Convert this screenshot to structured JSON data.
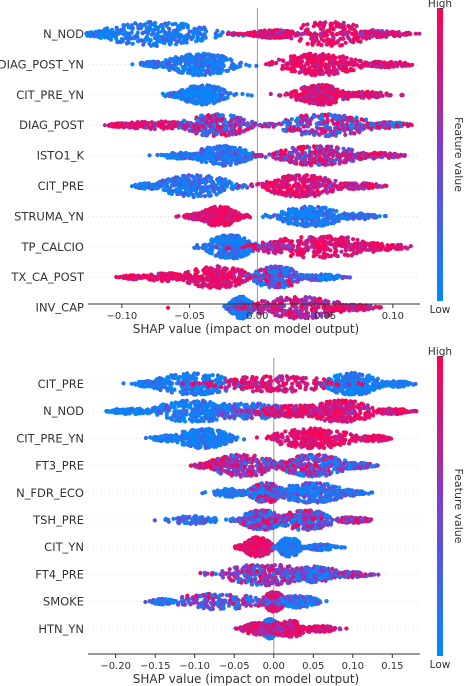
{
  "chart_data": [
    {
      "type": "scatter",
      "kind": "shap-beeswarm",
      "title": "",
      "xlabel": "SHAP value (impact on model output)",
      "xlim": [
        -0.125,
        0.12
      ],
      "xticks": [
        -0.1,
        -0.05,
        0.0,
        0.05,
        0.1
      ],
      "xtick_labels": [
        "−0.10",
        "−0.05",
        "0.00",
        "0.05",
        "0.10"
      ],
      "colorbar": {
        "label": "Feature value",
        "high": "High",
        "low": "Low"
      },
      "features": [
        {
          "name": "N_NOD",
          "clusters": [
            [
              -0.074,
              0.024,
              12,
              0.1,
              0.12,
              3
            ],
            [
              0.053,
              0.018,
              12,
              0.9,
              0.12,
              2
            ],
            [
              -0.115,
              0.008,
              3,
              0.1,
              0.12,
              1
            ],
            [
              0.012,
              0.01,
              4,
              0.85,
              0.14,
              3
            ],
            [
              0.09,
              0.012,
              3,
              0.8,
              0.15,
              1
            ]
          ]
        },
        {
          "name": "DIAG_POST_YN",
          "clusters": [
            [
              -0.042,
              0.015,
              11,
              0.12,
              0.12,
              3
            ],
            [
              0.045,
              0.018,
              11,
              0.9,
              0.1,
              3
            ],
            [
              -0.075,
              0.008,
              3,
              0.15,
              0.15,
              1
            ],
            [
              0.095,
              0.01,
              3,
              0.85,
              0.12,
              1
            ]
          ]
        },
        {
          "name": "CIT_PRE_YN",
          "clusters": [
            [
              -0.04,
              0.01,
              10,
              0.1,
              0.12,
              3
            ],
            [
              0.047,
              0.012,
              10,
              0.88,
              0.12,
              3
            ],
            [
              -0.055,
              0.006,
              3,
              0.1,
              0.12,
              1
            ],
            [
              0.08,
              0.01,
              3,
              0.85,
              0.15,
              1
            ]
          ]
        },
        {
          "name": "DIAG_POST",
          "clusters": [
            [
              -0.03,
              0.015,
              11,
              0.55,
              0.4,
              3
            ],
            [
              0.05,
              0.02,
              11,
              0.5,
              0.4,
              3
            ],
            [
              -0.075,
              0.015,
              4,
              0.8,
              0.2,
              1
            ],
            [
              -0.1,
              0.005,
              2,
              0.9,
              0.1,
              1
            ],
            [
              0.095,
              0.01,
              3,
              0.45,
              0.4,
              1
            ]
          ]
        },
        {
          "name": "ISTO1_K",
          "clusters": [
            [
              -0.026,
              0.012,
              10,
              0.15,
              0.15,
              3
            ],
            [
              0.045,
              0.018,
              10,
              0.7,
              0.3,
              3
            ],
            [
              -0.055,
              0.01,
              3,
              0.1,
              0.1,
              1
            ],
            [
              0.085,
              0.012,
              3,
              0.75,
              0.25,
              1
            ]
          ]
        },
        {
          "name": "CIT_PRE",
          "clusters": [
            [
              -0.046,
              0.016,
              11,
              0.15,
              0.15,
              3
            ],
            [
              0.032,
              0.016,
              11,
              0.85,
              0.15,
              3
            ],
            [
              -0.08,
              0.006,
              3,
              0.1,
              0.12,
              1
            ],
            [
              0.07,
              0.012,
              3,
              0.8,
              0.2,
              1
            ]
          ]
        },
        {
          "name": "STRUMA_YN",
          "clusters": [
            [
              -0.028,
              0.008,
              10,
              0.9,
              0.1,
              3
            ],
            [
              0.04,
              0.014,
              10,
              0.12,
              0.12,
              3
            ],
            [
              -0.045,
              0.005,
              3,
              0.85,
              0.1,
              1
            ],
            [
              0.075,
              0.008,
              3,
              0.15,
              0.12,
              1
            ]
          ]
        },
        {
          "name": "TP_CALCIO",
          "clusters": [
            [
              -0.02,
              0.01,
              12,
              0.12,
              0.12,
              3
            ],
            [
              0.045,
              0.025,
              11,
              0.88,
              0.12,
              3
            ],
            [
              0.085,
              0.015,
              4,
              0.9,
              0.1,
              1
            ],
            [
              0.012,
              0.006,
              3,
              0.7,
              0.2,
              1
            ]
          ]
        },
        {
          "name": "TX_CA_POST",
          "clusters": [
            [
              -0.03,
              0.014,
              11,
              0.88,
              0.1,
              3
            ],
            [
              0.014,
              0.01,
              11,
              0.4,
              0.4,
              3
            ],
            [
              -0.065,
              0.012,
              4,
              0.88,
              0.1,
              1
            ],
            [
              0.045,
              0.01,
              3,
              0.2,
              0.2,
              1
            ],
            [
              -0.092,
              0.004,
              2,
              0.9,
              0.1,
              1
            ]
          ]
        },
        {
          "name": "INV_CAP",
          "clusters": [
            [
              -0.012,
              0.005,
              11,
              0.12,
              0.12,
              3
            ],
            [
              0.03,
              0.02,
              11,
              0.8,
              0.2,
              3
            ],
            [
              0.07,
              0.01,
              3,
              0.85,
              0.15,
              1
            ]
          ]
        }
      ]
    },
    {
      "type": "scatter",
      "kind": "shap-beeswarm",
      "title": "",
      "xlabel": "SHAP value (impact on model output)",
      "xlim": [
        -0.235,
        0.185
      ],
      "xticks": [
        -0.2,
        -0.15,
        -0.1,
        -0.05,
        0.0,
        0.05,
        0.1,
        0.15
      ],
      "xtick_labels": [
        "−0.20",
        "−0.15",
        "−0.10",
        "−0.05",
        "0.00",
        "0.05",
        "0.10",
        "0.15"
      ],
      "colorbar": {
        "label": "Feature value",
        "high": "High",
        "low": "Low"
      },
      "features": [
        {
          "name": "CIT_PRE",
          "clusters": [
            [
              -0.1,
              0.03,
              11,
              0.1,
              0.12,
              3
            ],
            [
              0.1,
              0.02,
              11,
              0.08,
              0.1,
              3
            ],
            [
              0.0,
              0.045,
              8,
              0.85,
              0.15,
              2
            ],
            [
              -0.16,
              0.008,
              3,
              0.1,
              0.1,
              1
            ],
            [
              0.155,
              0.01,
              3,
              0.1,
              0.1,
              1
            ]
          ]
        },
        {
          "name": "N_NOD",
          "clusters": [
            [
              -0.1,
              0.03,
              11,
              0.1,
              0.12,
              3
            ],
            [
              0.085,
              0.025,
              11,
              0.85,
              0.15,
              3
            ],
            [
              -0.03,
              0.03,
              8,
              0.2,
              0.2,
              2
            ],
            [
              0.03,
              0.03,
              6,
              0.85,
              0.15,
              2
            ],
            [
              -0.18,
              0.015,
              3,
              0.1,
              0.1,
              1
            ],
            [
              0.15,
              0.012,
              3,
              0.88,
              0.12,
              1
            ]
          ]
        },
        {
          "name": "CIT_PRE_YN",
          "clusters": [
            [
              -0.09,
              0.02,
              10,
              0.1,
              0.12,
              3
            ],
            [
              0.05,
              0.03,
              10,
              0.9,
              0.1,
              3
            ],
            [
              -0.135,
              0.01,
              3,
              0.1,
              0.1,
              1
            ],
            [
              0.125,
              0.012,
              3,
              0.88,
              0.12,
              1
            ]
          ]
        },
        {
          "name": "FT3_PRE",
          "clusters": [
            [
              -0.04,
              0.025,
              11,
              0.65,
              0.25,
              3
            ],
            [
              0.05,
              0.025,
              11,
              0.45,
              0.35,
              3
            ],
            [
              -0.08,
              0.012,
              3,
              0.85,
              0.15,
              1
            ],
            [
              0.1,
              0.015,
              3,
              0.35,
              0.3,
              1
            ]
          ]
        },
        {
          "name": "N_FDR_ECO",
          "clusters": [
            [
              -0.01,
              0.012,
              10,
              0.45,
              0.4,
              3
            ],
            [
              0.05,
              0.025,
              10,
              0.2,
              0.2,
              3
            ],
            [
              -0.055,
              0.012,
              4,
              0.1,
              0.1,
              1
            ],
            [
              0.095,
              0.012,
              3,
              0.15,
              0.15,
              1
            ]
          ]
        },
        {
          "name": "TSH_PRE",
          "clusters": [
            [
              -0.015,
              0.015,
              10,
              0.45,
              0.35,
              3
            ],
            [
              0.04,
              0.02,
              10,
              0.45,
              0.35,
              3
            ],
            [
              -0.1,
              0.02,
              4,
              0.15,
              0.15,
              1
            ],
            [
              0.1,
              0.012,
              3,
              0.7,
              0.25,
              1
            ]
          ]
        },
        {
          "name": "CIT_YN",
          "clusters": [
            [
              -0.02,
              0.01,
              10,
              0.9,
              0.1,
              3
            ],
            [
              0.02,
              0.008,
              10,
              0.1,
              0.1,
              3
            ],
            [
              0.06,
              0.01,
              3,
              0.12,
              0.12,
              1
            ],
            [
              -0.04,
              0.006,
              2,
              0.9,
              0.1,
              1
            ]
          ]
        },
        {
          "name": "FT4_PRE",
          "clusters": [
            [
              -0.01,
              0.03,
              11,
              0.55,
              0.3,
              3
            ],
            [
              0.05,
              0.02,
              8,
              0.35,
              0.3,
              2
            ],
            [
              0.1,
              0.012,
              3,
              0.55,
              0.3,
              1
            ]
          ]
        },
        {
          "name": "SMOKE",
          "clusters": [
            [
              0.0,
              0.008,
              10,
              0.85,
              0.15,
              3
            ],
            [
              -0.07,
              0.035,
              8,
              0.4,
              0.3,
              2
            ],
            [
              0.03,
              0.015,
              6,
              0.2,
              0.2,
              2
            ],
            [
              -0.14,
              0.008,
              3,
              0.15,
              0.15,
              1
            ]
          ]
        },
        {
          "name": "HTN_YN",
          "clusters": [
            [
              -0.005,
              0.006,
              10,
              0.2,
              0.2,
              3
            ],
            [
              0.02,
              0.015,
              8,
              0.85,
              0.15,
              2
            ],
            [
              -0.02,
              0.012,
              6,
              0.8,
              0.2,
              2
            ],
            [
              0.06,
              0.01,
              3,
              0.85,
              0.15,
              1
            ]
          ]
        }
      ]
    }
  ],
  "colors": {
    "low": "#008afb",
    "mid": "#7c3fce",
    "high": "#ff0052",
    "axis": "#333333",
    "zero_line": "#999999"
  }
}
